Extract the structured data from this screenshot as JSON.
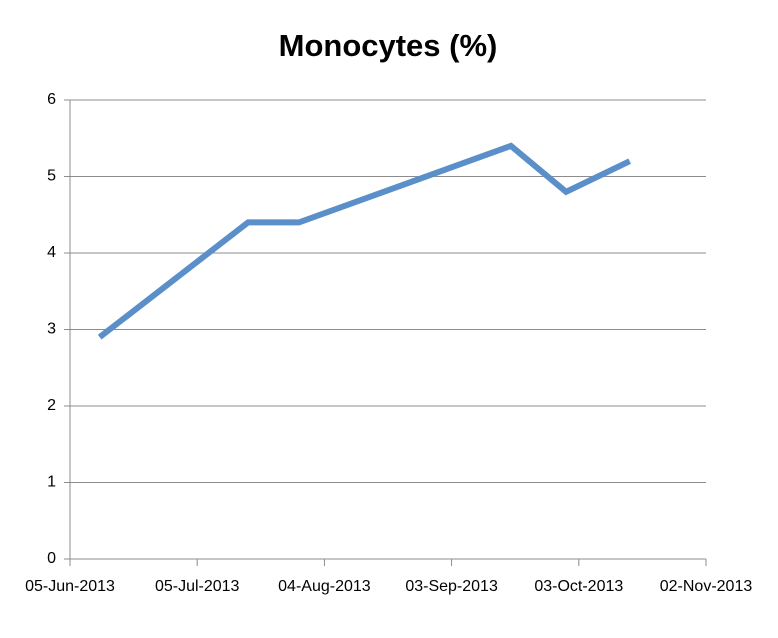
{
  "chart_data": {
    "type": "line",
    "title": "Monocytes (%)",
    "x": [
      "2013-06-12",
      "2013-07-17",
      "2013-07-29",
      "2013-09-17",
      "2013-09-30",
      "2013-10-15"
    ],
    "values": [
      2.9,
      4.4,
      4.4,
      5.4,
      4.8,
      5.2
    ],
    "color": "#5b8fc9",
    "xlim": [
      "2013-06-05",
      "2013-11-02"
    ],
    "xticks": [
      {
        "value": "2013-06-05",
        "label": "05-Jun-2013"
      },
      {
        "value": "2013-07-05",
        "label": "05-Jul-2013"
      },
      {
        "value": "2013-08-04",
        "label": "04-Aug-2013"
      },
      {
        "value": "2013-09-03",
        "label": "03-Sep-2013"
      },
      {
        "value": "2013-10-03",
        "label": "03-Oct-2013"
      },
      {
        "value": "2013-11-02",
        "label": "02-Nov-2013"
      }
    ],
    "ylim": [
      0,
      6
    ],
    "yticks": [
      0,
      1,
      2,
      3,
      4,
      5,
      6
    ],
    "grid": true
  }
}
